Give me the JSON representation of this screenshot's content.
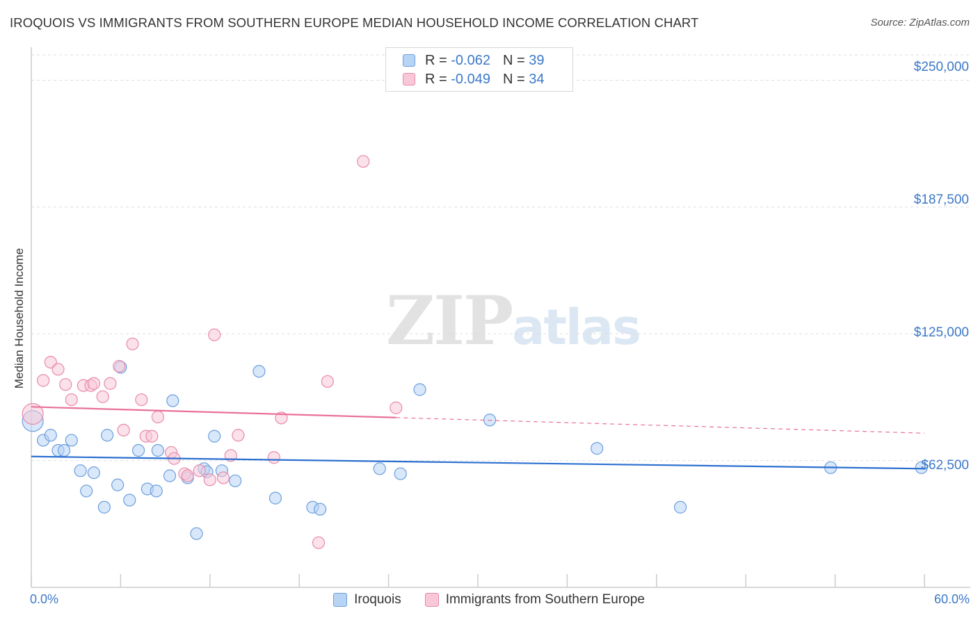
{
  "title": "IROQUOIS VS IMMIGRANTS FROM SOUTHERN EUROPE MEDIAN HOUSEHOLD INCOME CORRELATION CHART",
  "source": "Source: ZipAtlas.com",
  "watermark": {
    "zip": "ZIP",
    "atlas": "atlas"
  },
  "colors": {
    "blue": "#3b78c8",
    "blue_fill": "#b8d4f4",
    "blue_line": "#2b6fd0",
    "pink": "#e87aa0",
    "pink_fill": "#f8c8d8",
    "pink_line": "#e8709a",
    "grid": "#dddddd",
    "axis": "#cccccc"
  },
  "legend": {
    "r_label": "R =",
    "n_label": "N =",
    "series1": {
      "r": "-0.062",
      "n": "39"
    },
    "series2": {
      "r": "-0.049",
      "n": "34"
    }
  },
  "chart_data": {
    "type": "scatter",
    "title": "IROQUOIS VS IMMIGRANTS FROM SOUTHERN EUROPE MEDIAN HOUSEHOLD INCOME CORRELATION CHART",
    "xlabel": "",
    "ylabel": "Median Household Income",
    "xlim": [
      0,
      60
    ],
    "ylim": [
      0,
      262500
    ],
    "x_tick_labels": [
      "0.0%",
      "60.0%"
    ],
    "y_ticks": [
      62500,
      125000,
      187500,
      250000
    ],
    "y_tick_labels": [
      "$62,500",
      "$125,000",
      "$187,500",
      "$250,000"
    ],
    "grid": true,
    "legend_position": "bottom-center",
    "series": [
      {
        "name": "Iroquois",
        "color": "blue",
        "trend": {
          "x0": 0,
          "y0": 64500,
          "x1": 60,
          "y1": 58500,
          "solid_until": 60
        },
        "points": [
          {
            "x": 0.1,
            "y": 82000,
            "big": true
          },
          {
            "x": 0.8,
            "y": 72500
          },
          {
            "x": 1.3,
            "y": 75000
          },
          {
            "x": 1.8,
            "y": 67500
          },
          {
            "x": 2.2,
            "y": 67500
          },
          {
            "x": 2.7,
            "y": 72500
          },
          {
            "x": 3.3,
            "y": 57500
          },
          {
            "x": 3.7,
            "y": 47500
          },
          {
            "x": 4.2,
            "y": 56500
          },
          {
            "x": 4.9,
            "y": 39500
          },
          {
            "x": 5.1,
            "y": 75000
          },
          {
            "x": 5.8,
            "y": 50500
          },
          {
            "x": 6.0,
            "y": 108500
          },
          {
            "x": 6.6,
            "y": 43000
          },
          {
            "x": 7.2,
            "y": 67500
          },
          {
            "x": 7.8,
            "y": 48500
          },
          {
            "x": 8.4,
            "y": 47500
          },
          {
            "x": 8.5,
            "y": 67500
          },
          {
            "x": 9.3,
            "y": 55000
          },
          {
            "x": 9.5,
            "y": 92000
          },
          {
            "x": 10.5,
            "y": 54000
          },
          {
            "x": 11.1,
            "y": 26500
          },
          {
            "x": 11.6,
            "y": 58500
          },
          {
            "x": 11.8,
            "y": 57000
          },
          {
            "x": 12.3,
            "y": 74500
          },
          {
            "x": 12.8,
            "y": 57500
          },
          {
            "x": 13.7,
            "y": 52500
          },
          {
            "x": 15.3,
            "y": 106500
          },
          {
            "x": 16.4,
            "y": 44000
          },
          {
            "x": 18.9,
            "y": 39500
          },
          {
            "x": 19.4,
            "y": 38500
          },
          {
            "x": 23.4,
            "y": 58500
          },
          {
            "x": 24.8,
            "y": 56000
          },
          {
            "x": 26.1,
            "y": 97500
          },
          {
            "x": 30.8,
            "y": 82500
          },
          {
            "x": 38.0,
            "y": 68500
          },
          {
            "x": 43.6,
            "y": 39500
          },
          {
            "x": 53.7,
            "y": 59000
          },
          {
            "x": 59.8,
            "y": 59000
          }
        ]
      },
      {
        "name": "Immigrants from Southern Europe",
        "color": "pink",
        "trend": {
          "x0": 0,
          "y0": 89000,
          "x1": 60,
          "y1": 76000,
          "solid_until": 24.5
        },
        "points": [
          {
            "x": 0.1,
            "y": 85500,
            "big": true
          },
          {
            "x": 0.8,
            "y": 102000
          },
          {
            "x": 1.3,
            "y": 111000
          },
          {
            "x": 1.8,
            "y": 107500
          },
          {
            "x": 2.3,
            "y": 100000
          },
          {
            "x": 2.7,
            "y": 92500
          },
          {
            "x": 3.5,
            "y": 99500
          },
          {
            "x": 4.0,
            "y": 99500
          },
          {
            "x": 4.2,
            "y": 100500
          },
          {
            "x": 4.8,
            "y": 94000
          },
          {
            "x": 5.3,
            "y": 100500
          },
          {
            "x": 5.9,
            "y": 109000
          },
          {
            "x": 6.2,
            "y": 77500
          },
          {
            "x": 6.8,
            "y": 120000
          },
          {
            "x": 7.4,
            "y": 92500
          },
          {
            "x": 7.7,
            "y": 74500
          },
          {
            "x": 8.1,
            "y": 74500
          },
          {
            "x": 8.5,
            "y": 84000
          },
          {
            "x": 9.4,
            "y": 66500
          },
          {
            "x": 9.6,
            "y": 63500
          },
          {
            "x": 10.3,
            "y": 56000
          },
          {
            "x": 10.5,
            "y": 55000
          },
          {
            "x": 11.3,
            "y": 57500
          },
          {
            "x": 12.0,
            "y": 53000
          },
          {
            "x": 12.3,
            "y": 124500
          },
          {
            "x": 12.9,
            "y": 54000
          },
          {
            "x": 13.4,
            "y": 65000
          },
          {
            "x": 13.9,
            "y": 75000
          },
          {
            "x": 16.3,
            "y": 64000
          },
          {
            "x": 16.8,
            "y": 83500
          },
          {
            "x": 19.3,
            "y": 22000
          },
          {
            "x": 19.9,
            "y": 101500
          },
          {
            "x": 22.3,
            "y": 210000
          },
          {
            "x": 24.5,
            "y": 88500
          }
        ]
      }
    ]
  }
}
